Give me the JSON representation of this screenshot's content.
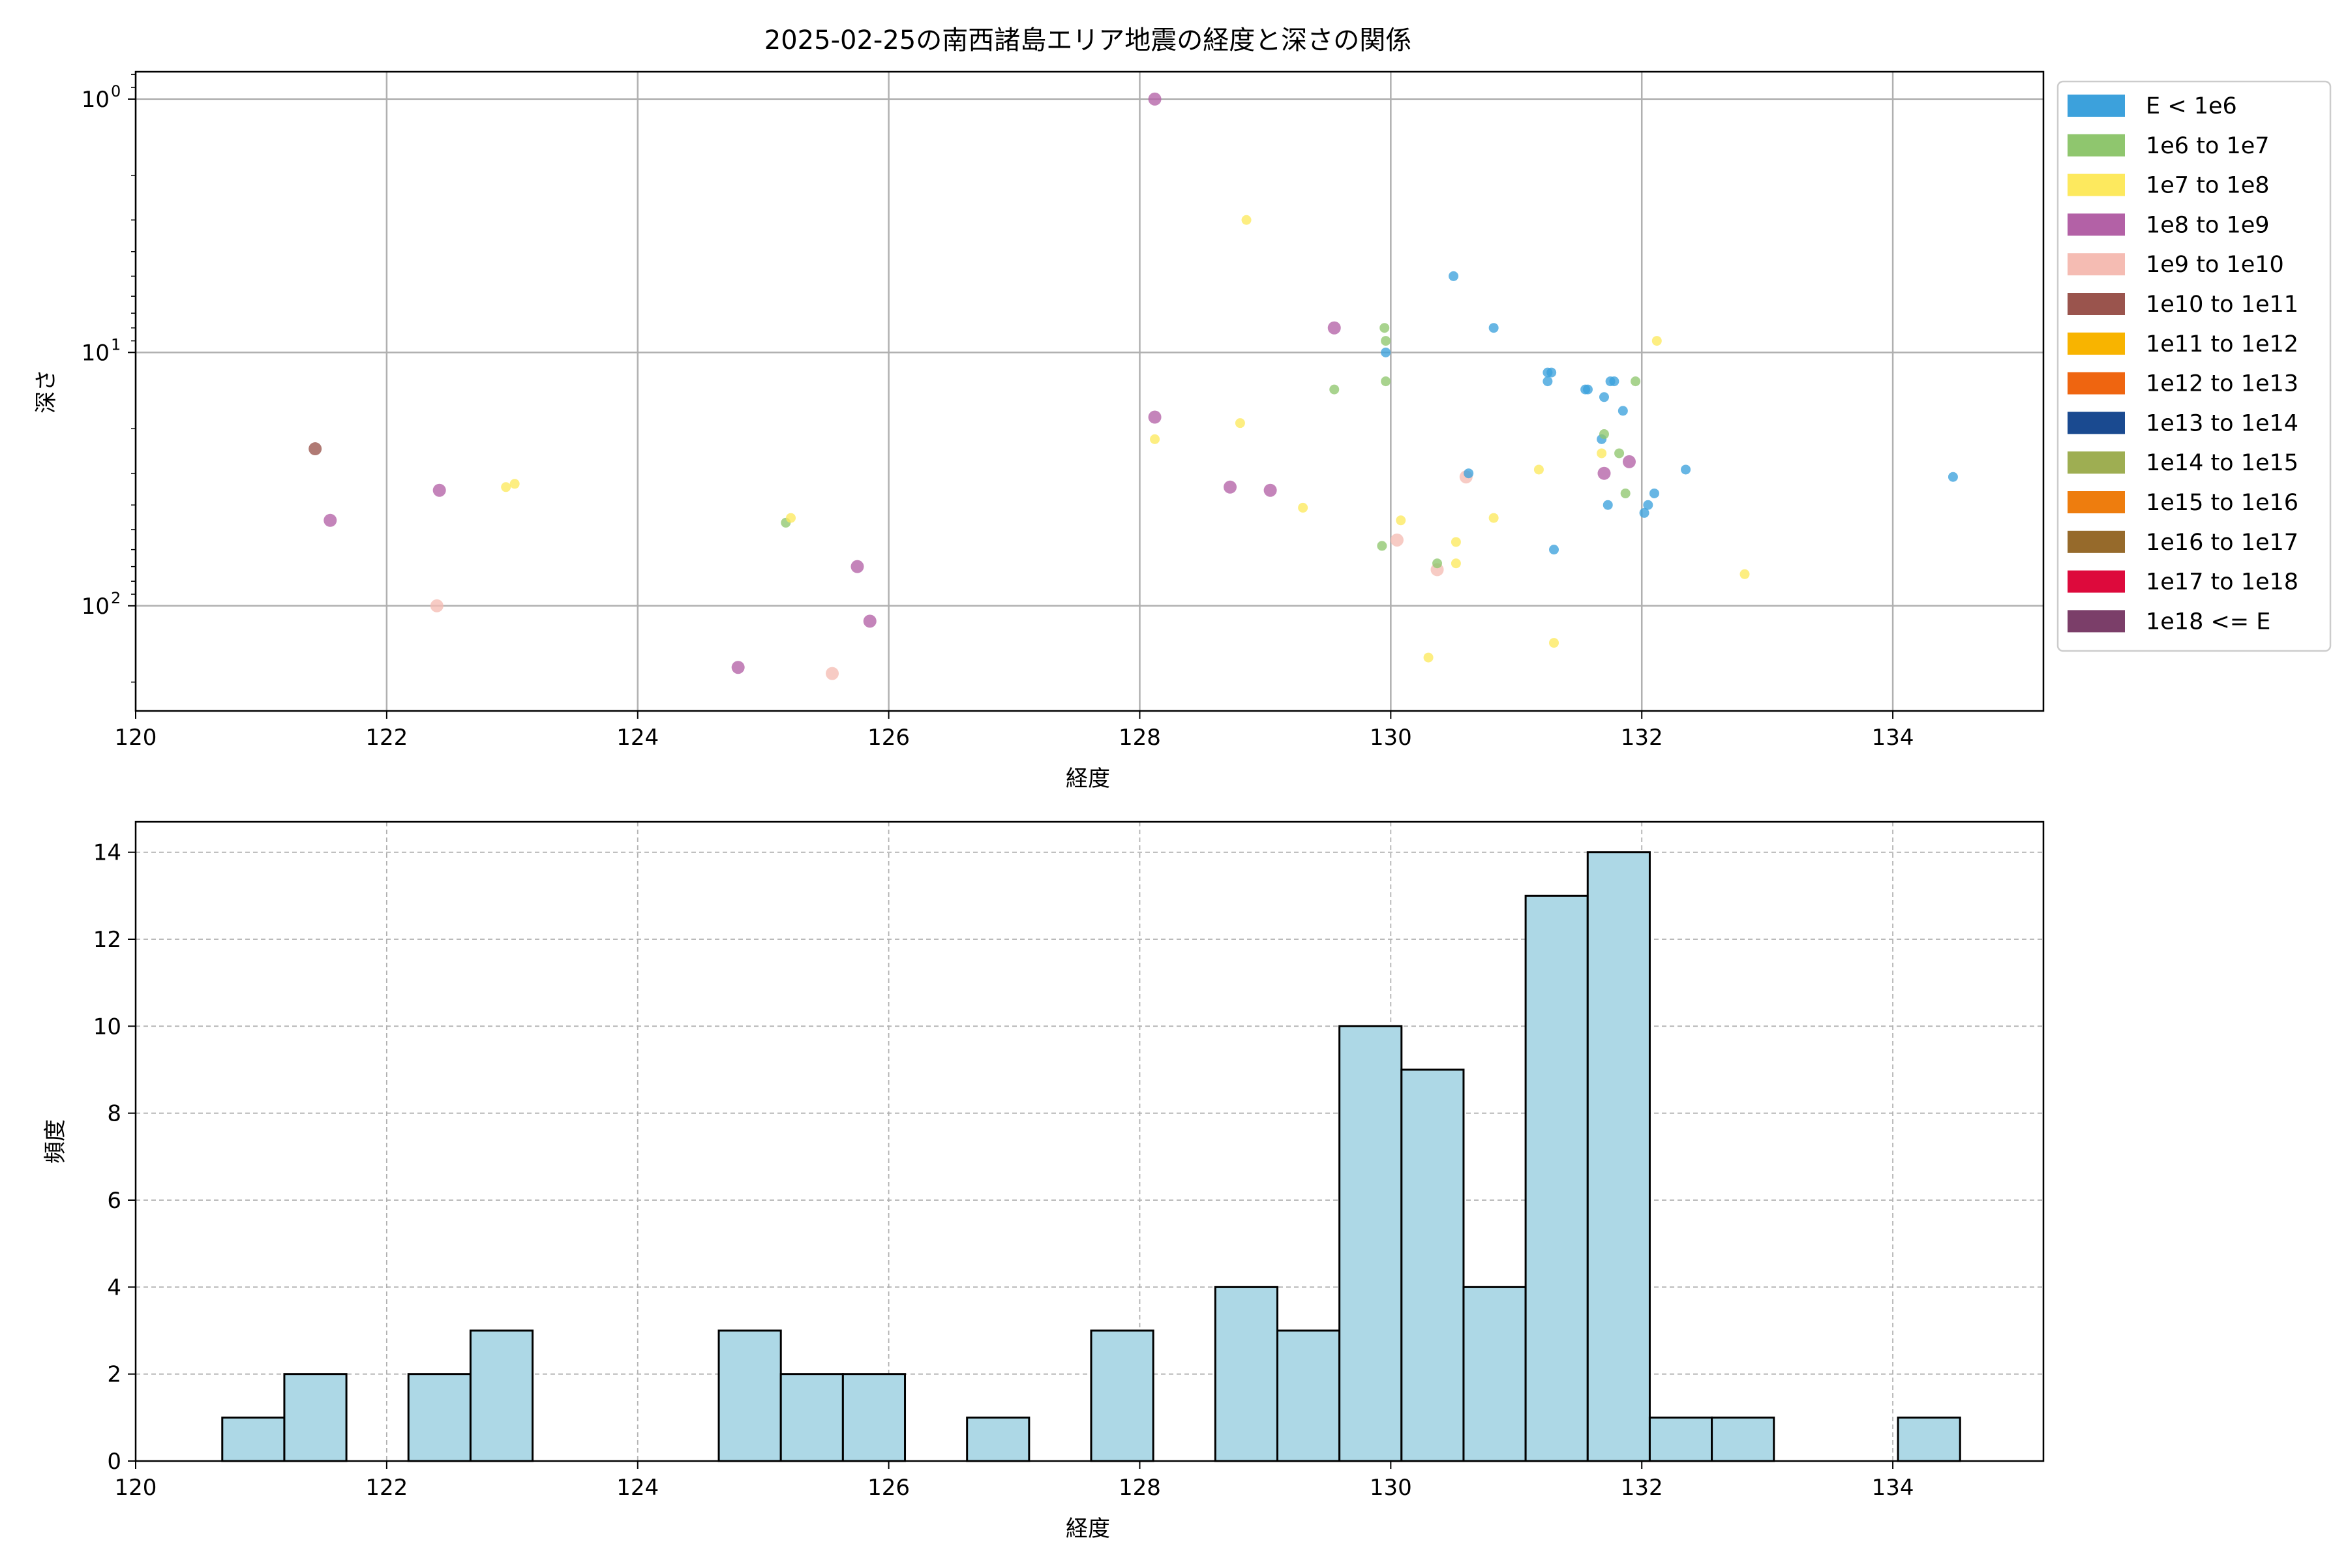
{
  "chart_data": [
    {
      "type": "scatter",
      "title": "2025-02-25の南西諸島エリア地震の経度と深さの関係",
      "xlabel": "経度",
      "ylabel": "深さ",
      "xlim": [
        120,
        135.2
      ],
      "ylim": [
        260,
        0.78
      ],
      "yscale": "log",
      "yinverted": true,
      "grid": true,
      "xticks": [
        120,
        122,
        124,
        126,
        128,
        130,
        132,
        134
      ],
      "yticks": [
        {
          "value": 1,
          "label": "10",
          "exp": "0"
        },
        {
          "value": 10,
          "label": "10",
          "exp": "1"
        },
        {
          "value": 100,
          "label": "10",
          "exp": "2"
        }
      ],
      "legend_position": "outside-right-top",
      "legend": [
        {
          "label": "E < 1e6",
          "color": "#3ca1dc"
        },
        {
          "label": "1e6 to 1e7",
          "color": "#8fc66e"
        },
        {
          "label": "1e7 to 1e8",
          "color": "#fde95e"
        },
        {
          "label": "1e8 to 1e9",
          "color": "#b361a6"
        },
        {
          "label": "1e9 to 1e10",
          "color": "#f5bcb3"
        },
        {
          "label": "1e10 to 1e11",
          "color": "#9a544d"
        },
        {
          "label": "1e11 to 1e12",
          "color": "#f8b400"
        },
        {
          "label": "1e12 to 1e13",
          "color": "#ef6510"
        },
        {
          "label": "1e13 to 1e14",
          "color": "#1a4a90"
        },
        {
          "label": "1e14 to 1e15",
          "color": "#9eae52"
        },
        {
          "label": "1e15 to 1e16",
          "color": "#ee7d0e"
        },
        {
          "label": "1e16 to 1e17",
          "color": "#966a2b"
        },
        {
          "label": "1e17 to 1e18",
          "color": "#dd0a3c"
        },
        {
          "label": "1e18 <= E",
          "color": "#7b3e69"
        }
      ],
      "points": [
        {
          "x": 121.43,
          "y": 24,
          "cls": 5
        },
        {
          "x": 121.55,
          "y": 46,
          "cls": 3
        },
        {
          "x": 122.42,
          "y": 35,
          "cls": 3
        },
        {
          "x": 122.4,
          "y": 100,
          "cls": 4
        },
        {
          "x": 122.95,
          "y": 34,
          "cls": 2
        },
        {
          "x": 123.02,
          "y": 33,
          "cls": 2
        },
        {
          "x": 124.8,
          "y": 175,
          "cls": 3
        },
        {
          "x": 125.18,
          "y": 47,
          "cls": 1
        },
        {
          "x": 125.22,
          "y": 45,
          "cls": 2
        },
        {
          "x": 125.55,
          "y": 185,
          "cls": 4
        },
        {
          "x": 125.75,
          "y": 70,
          "cls": 3
        },
        {
          "x": 125.85,
          "y": 115,
          "cls": 3
        },
        {
          "x": 128.12,
          "y": 1,
          "cls": 3
        },
        {
          "x": 128.12,
          "y": 18,
          "cls": 3
        },
        {
          "x": 128.12,
          "y": 22,
          "cls": 2
        },
        {
          "x": 128.72,
          "y": 34,
          "cls": 3
        },
        {
          "x": 128.8,
          "y": 19,
          "cls": 2
        },
        {
          "x": 128.85,
          "y": 3,
          "cls": 2
        },
        {
          "x": 129.04,
          "y": 35,
          "cls": 3
        },
        {
          "x": 129.3,
          "y": 41,
          "cls": 2
        },
        {
          "x": 129.55,
          "y": 8,
          "cls": 3
        },
        {
          "x": 129.55,
          "y": 14,
          "cls": 1
        },
        {
          "x": 129.93,
          "y": 58,
          "cls": 1
        },
        {
          "x": 129.95,
          "y": 8,
          "cls": 1
        },
        {
          "x": 129.96,
          "y": 9,
          "cls": 1
        },
        {
          "x": 129.96,
          "y": 10,
          "cls": 0
        },
        {
          "x": 129.96,
          "y": 13,
          "cls": 1
        },
        {
          "x": 130.05,
          "y": 55,
          "cls": 4
        },
        {
          "x": 130.08,
          "y": 46,
          "cls": 2
        },
        {
          "x": 130.3,
          "y": 160,
          "cls": 2
        },
        {
          "x": 130.37,
          "y": 72,
          "cls": 4
        },
        {
          "x": 130.37,
          "y": 68,
          "cls": 1
        },
        {
          "x": 130.5,
          "y": 5,
          "cls": 0
        },
        {
          "x": 130.52,
          "y": 56,
          "cls": 2
        },
        {
          "x": 130.52,
          "y": 68,
          "cls": 2
        },
        {
          "x": 130.6,
          "y": 31,
          "cls": 4
        },
        {
          "x": 130.62,
          "y": 30,
          "cls": 0
        },
        {
          "x": 130.82,
          "y": 8,
          "cls": 0
        },
        {
          "x": 130.82,
          "y": 45,
          "cls": 2
        },
        {
          "x": 131.18,
          "y": 29,
          "cls": 2
        },
        {
          "x": 131.25,
          "y": 12,
          "cls": 0
        },
        {
          "x": 131.25,
          "y": 13,
          "cls": 0
        },
        {
          "x": 131.28,
          "y": 12,
          "cls": 0
        },
        {
          "x": 131.3,
          "y": 140,
          "cls": 2
        },
        {
          "x": 131.3,
          "y": 60,
          "cls": 0
        },
        {
          "x": 131.55,
          "y": 14,
          "cls": 0
        },
        {
          "x": 131.57,
          "y": 14,
          "cls": 0
        },
        {
          "x": 131.68,
          "y": 22,
          "cls": 0
        },
        {
          "x": 131.68,
          "y": 25,
          "cls": 2
        },
        {
          "x": 131.7,
          "y": 21,
          "cls": 1
        },
        {
          "x": 131.7,
          "y": 15,
          "cls": 0
        },
        {
          "x": 131.7,
          "y": 30,
          "cls": 3
        },
        {
          "x": 131.73,
          "y": 40,
          "cls": 0
        },
        {
          "x": 131.75,
          "y": 13,
          "cls": 0
        },
        {
          "x": 131.78,
          "y": 13,
          "cls": 0
        },
        {
          "x": 131.82,
          "y": 25,
          "cls": 1
        },
        {
          "x": 131.85,
          "y": 17,
          "cls": 0
        },
        {
          "x": 131.87,
          "y": 36,
          "cls": 1
        },
        {
          "x": 131.9,
          "y": 27,
          "cls": 3
        },
        {
          "x": 131.95,
          "y": 13,
          "cls": 1
        },
        {
          "x": 132.02,
          "y": 43,
          "cls": 0
        },
        {
          "x": 132.05,
          "y": 40,
          "cls": 0
        },
        {
          "x": 132.1,
          "y": 36,
          "cls": 0
        },
        {
          "x": 132.12,
          "y": 9,
          "cls": 2
        },
        {
          "x": 132.35,
          "y": 29,
          "cls": 0
        },
        {
          "x": 132.82,
          "y": 75,
          "cls": 2
        },
        {
          "x": 134.48,
          "y": 31,
          "cls": 0
        }
      ]
    },
    {
      "type": "bar",
      "subtype": "histogram",
      "xlabel": "経度",
      "ylabel": "頻度",
      "xlim": [
        120,
        135.2
      ],
      "ylim": [
        0,
        14.7
      ],
      "grid": true,
      "xticks": [
        120,
        122,
        124,
        126,
        128,
        130,
        132,
        134
      ],
      "yticks": [
        0,
        2,
        4,
        6,
        8,
        10,
        12,
        14
      ],
      "bar_color": "#add8e6",
      "bin_start": 120.69,
      "bin_width": 0.4945,
      "counts": [
        1,
        2,
        0,
        2,
        3,
        0,
        0,
        0,
        3,
        2,
        2,
        0,
        1,
        0,
        3,
        0,
        4,
        3,
        10,
        9,
        4,
        13,
        14,
        1,
        1,
        0,
        0,
        1
      ]
    }
  ]
}
